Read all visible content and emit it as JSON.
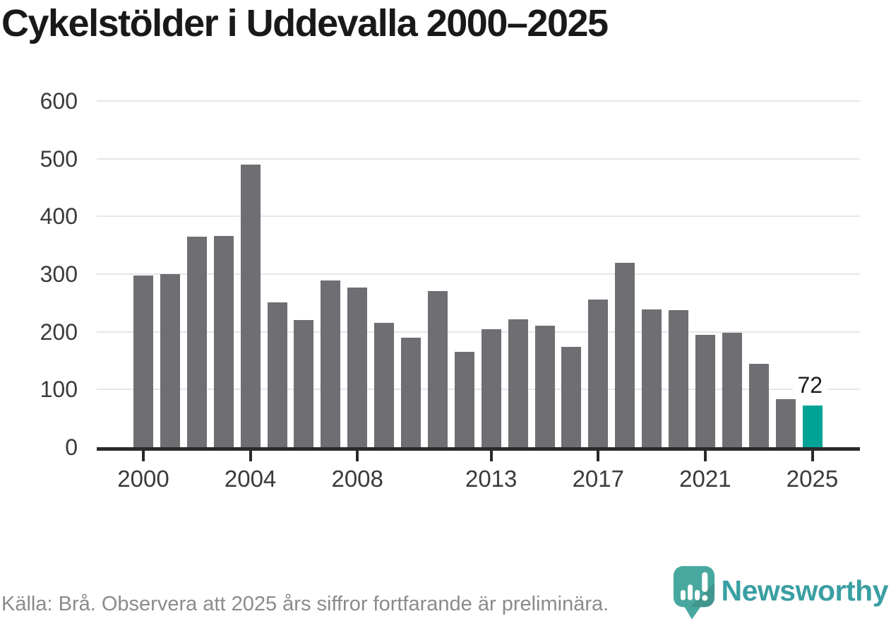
{
  "header": {
    "title": "Cykelstölder i Uddevalla 2000–2025"
  },
  "chart_data": {
    "type": "bar",
    "title": "Cykelstölder i Uddevalla 2000–2025",
    "xlabel": "",
    "ylabel": "",
    "x": [
      2000,
      2001,
      2002,
      2003,
      2004,
      2005,
      2006,
      2007,
      2008,
      2009,
      2010,
      2011,
      2012,
      2013,
      2014,
      2015,
      2016,
      2017,
      2018,
      2019,
      2020,
      2021,
      2022,
      2023,
      2024,
      2025
    ],
    "values": [
      298,
      300,
      365,
      366,
      490,
      251,
      221,
      289,
      277,
      215,
      190,
      271,
      165,
      204,
      222,
      211,
      174,
      256,
      320,
      239,
      237,
      195,
      198,
      144,
      83,
      72
    ],
    "ylim": [
      0,
      600
    ],
    "yticks": [
      0,
      100,
      200,
      300,
      400,
      500,
      600
    ],
    "xticks": [
      2000,
      2004,
      2008,
      2013,
      2017,
      2021,
      2025
    ],
    "grid": "horizontal",
    "legend": "none",
    "annotation": {
      "year": 2025,
      "text": "72"
    },
    "highlight_year": 2025,
    "bar_color": "#6e6e73",
    "highlight_color": "#00a396"
  },
  "footer": {
    "source": "Källa: Brå. Observera att 2025 års siffror fortfarande är preliminära."
  },
  "logo": {
    "brand": "Newsworthy",
    "wordmark_color": "#3a9fa3",
    "icon_color": "#48a89f"
  }
}
